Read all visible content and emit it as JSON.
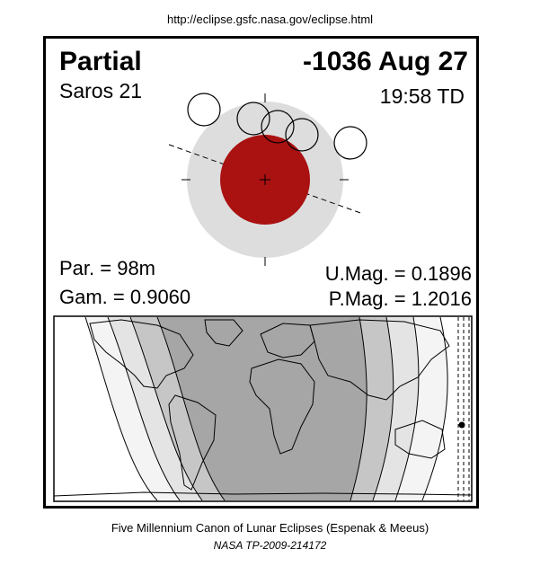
{
  "header": {
    "url": "http://eclipse.gsfc.nasa.gov/eclipse.html"
  },
  "eclipse": {
    "type": "Partial",
    "date": "-1036 Aug 27",
    "saros": "Saros  21",
    "time": "19:58 TD",
    "parameters": {
      "par": "Par. =  98m",
      "gam": "Gam. = 0.9060",
      "umag": "U.Mag. = 0.1896",
      "pmag": "P.Mag. = 1.2016"
    }
  },
  "colors": {
    "umbra": "#dddddd",
    "moon": "#aa1111",
    "map_dark": "#a6a6a6",
    "map_mid": "#c6c6c6",
    "map_light": "#e4e4e4",
    "map_lightest": "#f4f4f4"
  },
  "footer": {
    "line1": "Five Millennium Canon of Lunar Eclipses (Espenak & Meeus)",
    "line2": "NASA TP-2009-214172"
  }
}
